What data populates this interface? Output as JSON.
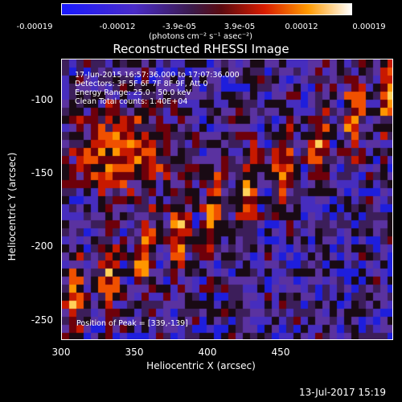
{
  "colorbar": {
    "ticks": [
      "-0.00019",
      "-0.00012",
      "-3.9e-05",
      "3.9e-05",
      "0.00012",
      "0.00019"
    ],
    "unit": "(photons cm⁻² s⁻¹ asec⁻²)"
  },
  "plot": {
    "title": "Reconstructed RHESSI Image",
    "xlabel": "Heliocentric X (arcsec)",
    "ylabel": "Heliocentric Y (arcsec)",
    "xticks": [
      "300",
      "350",
      "400",
      "450"
    ],
    "yticks": [
      "-100",
      "-150",
      "-200",
      "-250"
    ],
    "annotations": [
      "17-Jun-2015 16:57:36.000 to 17:07:36.000",
      "Detectors: 3F 5F 6F 7F 8F 9F, Att 0",
      "Energy Range: 25.0 - 50.0 keV",
      "Clean     Total counts: 1.40E+04"
    ],
    "peak": "Position of Peak = [339,-139]"
  },
  "footer_date": "13-Jul-2017 15:19"
}
